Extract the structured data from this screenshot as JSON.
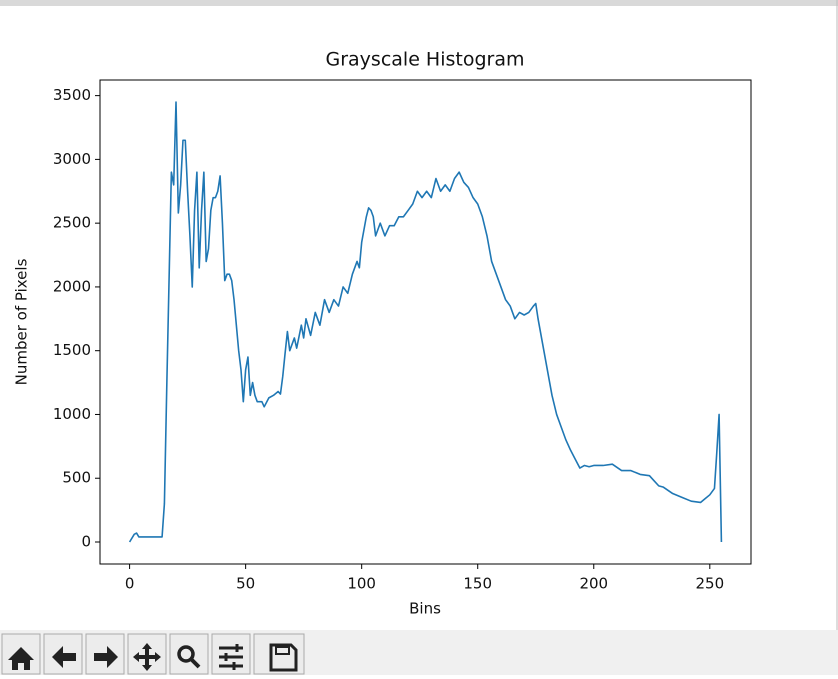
{
  "chart_data": {
    "type": "line",
    "title": "Grayscale Histogram",
    "x_label": "Bins",
    "y_label": "Number of Pixels",
    "x": [
      0,
      2,
      3,
      4,
      14,
      15,
      16,
      18,
      19,
      20,
      21,
      22,
      23,
      24,
      25,
      26,
      27,
      28,
      29,
      30,
      31,
      32,
      33,
      34,
      35,
      36,
      37,
      38,
      39,
      40,
      41,
      42,
      43,
      44,
      45,
      46,
      47,
      48,
      49,
      50,
      51,
      52,
      53,
      54,
      55,
      57,
      58,
      60,
      62,
      64,
      65,
      66,
      67,
      68,
      69,
      70,
      71,
      72,
      74,
      75,
      76,
      78,
      80,
      82,
      84,
      86,
      88,
      90,
      92,
      94,
      96,
      98,
      99,
      100,
      102,
      103,
      104,
      105,
      106,
      108,
      110,
      112,
      114,
      116,
      118,
      120,
      122,
      124,
      126,
      128,
      130,
      132,
      134,
      136,
      138,
      140,
      142,
      144,
      146,
      148,
      150,
      152,
      154,
      156,
      158,
      160,
      162,
      164,
      166,
      168,
      170,
      172,
      174,
      175,
      176,
      178,
      180,
      182,
      184,
      186,
      188,
      190,
      192,
      194,
      196,
      198,
      200,
      204,
      208,
      212,
      216,
      220,
      224,
      226,
      228,
      230,
      234,
      238,
      242,
      246,
      248,
      250,
      252,
      253,
      254,
      255
    ],
    "values": [
      0,
      60,
      70,
      40,
      40,
      300,
      1200,
      2900,
      2800,
      3450,
      2580,
      2800,
      3150,
      3150,
      2750,
      2400,
      2000,
      2600,
      2900,
      2150,
      2600,
      2900,
      2200,
      2300,
      2600,
      2700,
      2700,
      2750,
      2870,
      2500,
      2050,
      2100,
      2100,
      2050,
      1900,
      1700,
      1500,
      1350,
      1100,
      1350,
      1450,
      1150,
      1250,
      1150,
      1100,
      1100,
      1060,
      1130,
      1150,
      1180,
      1160,
      1300,
      1480,
      1650,
      1500,
      1550,
      1600,
      1520,
      1700,
      1600,
      1750,
      1620,
      1800,
      1700,
      1900,
      1800,
      1900,
      1850,
      2000,
      1950,
      2100,
      2200,
      2150,
      2350,
      2550,
      2620,
      2600,
      2550,
      2400,
      2500,
      2400,
      2480,
      2480,
      2550,
      2550,
      2600,
      2650,
      2750,
      2700,
      2750,
      2700,
      2850,
      2750,
      2800,
      2750,
      2850,
      2900,
      2820,
      2780,
      2700,
      2650,
      2550,
      2400,
      2200,
      2100,
      2000,
      1900,
      1850,
      1750,
      1800,
      1780,
      1800,
      1850,
      1870,
      1750,
      1550,
      1350,
      1150,
      1000,
      900,
      800,
      720,
      650,
      580,
      600,
      590,
      600,
      600,
      610,
      560,
      560,
      530,
      520,
      480,
      440,
      430,
      380,
      350,
      320,
      310,
      340,
      370,
      420,
      700,
      1000,
      0
    ],
    "color": "#1f77b4",
    "xlim": [
      -12.75,
      267.75
    ],
    "xticks": [
      0,
      50,
      100,
      150,
      200,
      250
    ],
    "ylim": [
      -172.5,
      3622.5
    ],
    "yticks": [
      0,
      500,
      1000,
      1500,
      2000,
      2500,
      3000,
      3500
    ]
  }
}
